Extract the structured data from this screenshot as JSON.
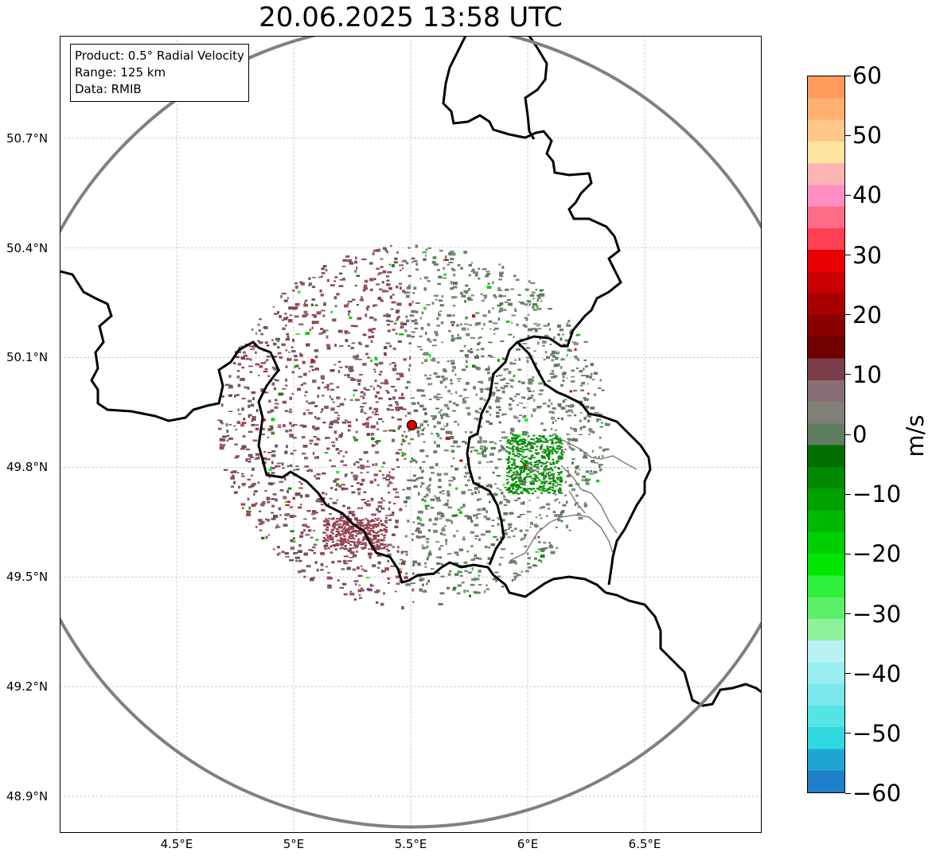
{
  "title": "20.06.2025 13:58 UTC",
  "info": {
    "product": "Product: 0.5° Radial Velocity",
    "range": "Range: 125 km",
    "data": "Data: RMIB"
  },
  "map": {
    "lon_range": [
      4.0,
      7.0
    ],
    "lat_range": [
      48.8,
      50.98
    ],
    "lat_ticks": [
      "50.7°N",
      "50.4°N",
      "50.1°N",
      "49.8°N",
      "49.5°N",
      "49.2°N",
      "48.9°N"
    ],
    "lat_values": [
      50.7,
      50.4,
      50.1,
      49.8,
      49.5,
      49.2,
      48.9
    ],
    "lon_ticks": [
      "4.5°E",
      "5°E",
      "5.5°E",
      "6°E",
      "6.5°E"
    ],
    "lon_values": [
      4.5,
      5.0,
      5.5,
      6.0,
      6.5
    ],
    "radar_site": {
      "lon": 5.505,
      "lat": 49.915,
      "color": "#e00000"
    },
    "range_ring_color": "#808080",
    "border_color": "#000000",
    "subregion_color": "#808080",
    "grid": true
  },
  "colorbar": {
    "label": "m/s",
    "min": -60,
    "max": 60,
    "ticks": [
      "60",
      "50",
      "40",
      "30",
      "20",
      "10",
      "0",
      "−10",
      "−20",
      "−30",
      "−40",
      "−50",
      "−60"
    ],
    "tick_values": [
      60,
      50,
      40,
      30,
      20,
      10,
      0,
      -10,
      -20,
      -30,
      -40,
      -50,
      -60
    ],
    "colors": [
      "#1f7fc8",
      "#21a6d3",
      "#30d8e0",
      "#55e4e6",
      "#7ae8ec",
      "#9aeef0",
      "#b8f2f4",
      "#8df29a",
      "#5cf06a",
      "#2ff03a",
      "#00e600",
      "#00cf00",
      "#00b800",
      "#00a000",
      "#008a00",
      "#006e00",
      "#5f7d5f",
      "#808078",
      "#8a6e76",
      "#7a3e48",
      "#6e0000",
      "#8a0000",
      "#a80000",
      "#c80000",
      "#e80000",
      "#ff3f52",
      "#ff6a86",
      "#ff8fc2",
      "#ffb4b4",
      "#ffe6a0",
      "#ffc88a",
      "#ffb070",
      "#ff9a5a"
    ]
  }
}
